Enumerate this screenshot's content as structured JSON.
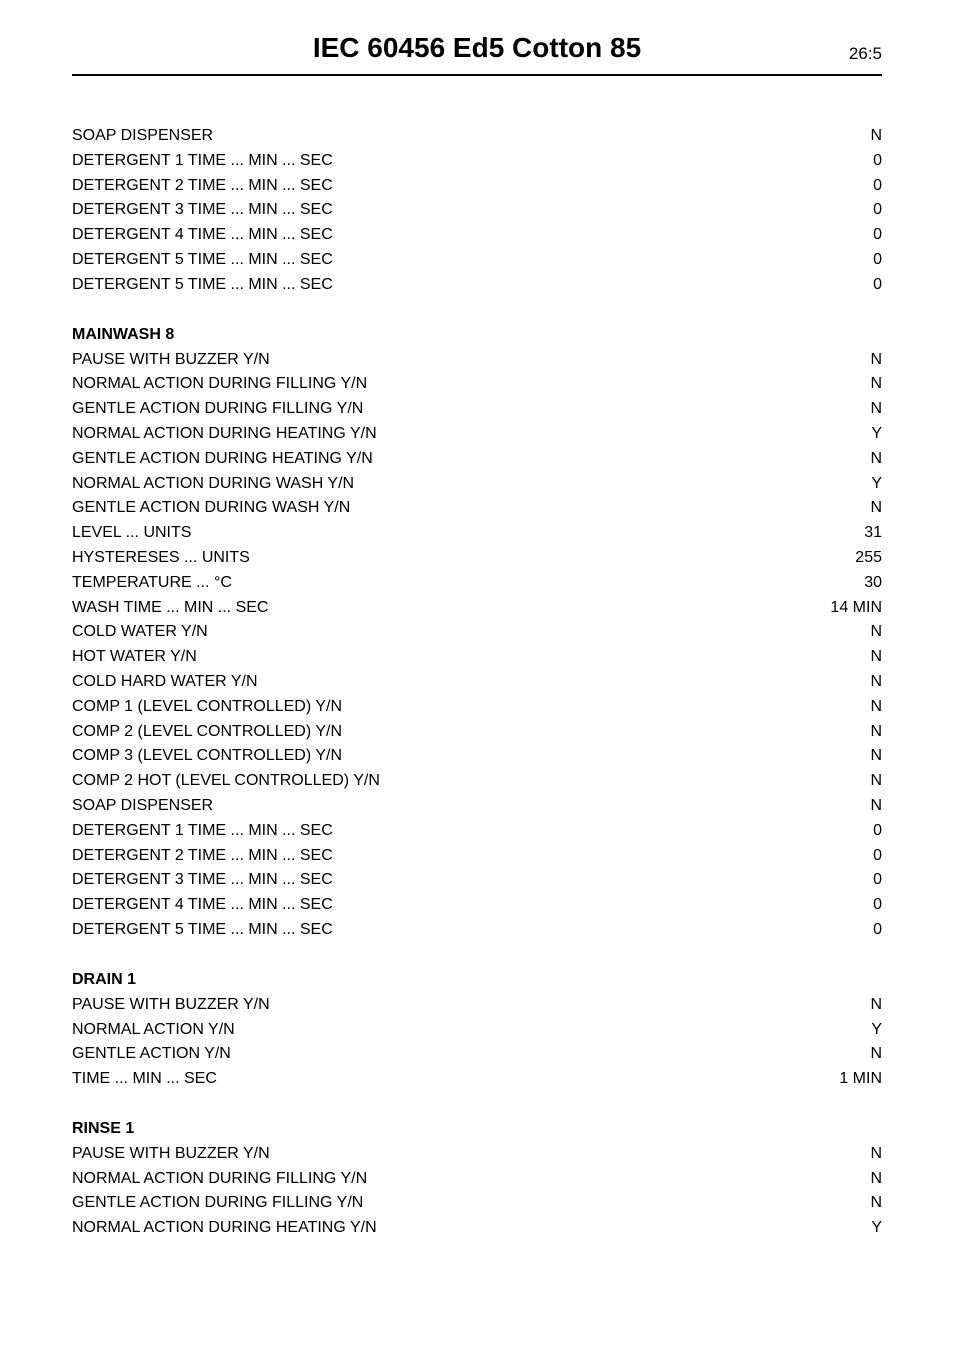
{
  "header": {
    "title": "IEC 60456 Ed5 Cotton 85",
    "page_number": "26:5"
  },
  "sections": [
    {
      "title": null,
      "rows": [
        {
          "label": "SOAP DISPENSER",
          "value": "N"
        },
        {
          "label": "DETERGENT 1 TIME ... MIN ... SEC",
          "value": "0"
        },
        {
          "label": "DETERGENT 2 TIME ... MIN ... SEC",
          "value": "0"
        },
        {
          "label": "DETERGENT 3 TIME ... MIN ... SEC",
          "value": "0"
        },
        {
          "label": "DETERGENT 4 TIME ... MIN ... SEC",
          "value": "0"
        },
        {
          "label": "DETERGENT 5 TIME ... MIN ... SEC",
          "value": "0"
        },
        {
          "label": "DETERGENT 5 TIME ... MIN ... SEC",
          "value": "0"
        }
      ]
    },
    {
      "title": "MAINWASH 8",
      "rows": [
        {
          "label": "PAUSE WITH BUZZER  Y/N",
          "value": "N"
        },
        {
          "label": "NORMAL ACTION DURING FILLING  Y/N",
          "value": "N"
        },
        {
          "label": "GENTLE ACTION DURING FILLING  Y/N",
          "value": "N"
        },
        {
          "label": "NORMAL ACTION DURING HEATING  Y/N",
          "value": "Y"
        },
        {
          "label": "GENTLE ACTION DURING HEATING  Y/N",
          "value": "N"
        },
        {
          "label": "NORMAL ACTION DURING WASH  Y/N",
          "value": "Y"
        },
        {
          "label": "GENTLE ACTION DURING WASH  Y/N",
          "value": "N"
        },
        {
          "label": "LEVEL ... UNITS",
          "value": "31"
        },
        {
          "label": "HYSTERESES ... UNITS",
          "value": "255"
        },
        {
          "label": "TEMPERATURE ...  °C",
          "value": "30"
        },
        {
          "label": "WASH TIME ... MIN ... SEC",
          "value": "14 MIN"
        },
        {
          "label": "COLD WATER  Y/N",
          "value": "N"
        },
        {
          "label": "HOT WATER  Y/N",
          "value": "N"
        },
        {
          "label": "COLD HARD WATER  Y/N",
          "value": "N"
        },
        {
          "label": "COMP 1 (LEVEL CONTROLLED)  Y/N",
          "value": "N"
        },
        {
          "label": "COMP 2 (LEVEL CONTROLLED)  Y/N",
          "value": "N"
        },
        {
          "label": "COMP 3 (LEVEL CONTROLLED)  Y/N",
          "value": "N"
        },
        {
          "label": "COMP 2 HOT (LEVEL CONTROLLED)  Y/N",
          "value": "N"
        },
        {
          "label": "SOAP DISPENSER",
          "value": "N"
        },
        {
          "label": "DETERGENT 1 TIME ... MIN ... SEC",
          "value": "0"
        },
        {
          "label": "DETERGENT 2 TIME ... MIN ... SEC",
          "value": "0"
        },
        {
          "label": "DETERGENT 3 TIME ... MIN ... SEC",
          "value": "0"
        },
        {
          "label": "DETERGENT 4 TIME ... MIN ... SEC",
          "value": "0"
        },
        {
          "label": "DETERGENT 5 TIME ... MIN ... SEC",
          "value": "0"
        }
      ]
    },
    {
      "title": "DRAIN 1",
      "rows": [
        {
          "label": "PAUSE WITH BUZZER  Y/N",
          "value": "N"
        },
        {
          "label": "NORMAL ACTION  Y/N",
          "value": "Y"
        },
        {
          "label": "GENTLE ACTION  Y/N",
          "value": "N"
        },
        {
          "label": "TIME ... MIN ... SEC",
          "value": "1 MIN"
        }
      ]
    },
    {
      "title": "RINSE 1",
      "rows": [
        {
          "label": "PAUSE WITH BUZZER  Y/N",
          "value": "N"
        },
        {
          "label": "NORMAL ACTION DURING FILLING  Y/N",
          "value": "N"
        },
        {
          "label": "GENTLE ACTION DURING FILLING  Y/N",
          "value": "N"
        },
        {
          "label": "NORMAL ACTION DURING HEATING  Y/N",
          "value": "Y"
        }
      ]
    }
  ],
  "style": {
    "background_color": "#ffffff",
    "text_color": "#000000",
    "header_border_color": "#000000",
    "title_fontsize": 28,
    "body_fontsize": 16,
    "line_height": 1.55
  }
}
